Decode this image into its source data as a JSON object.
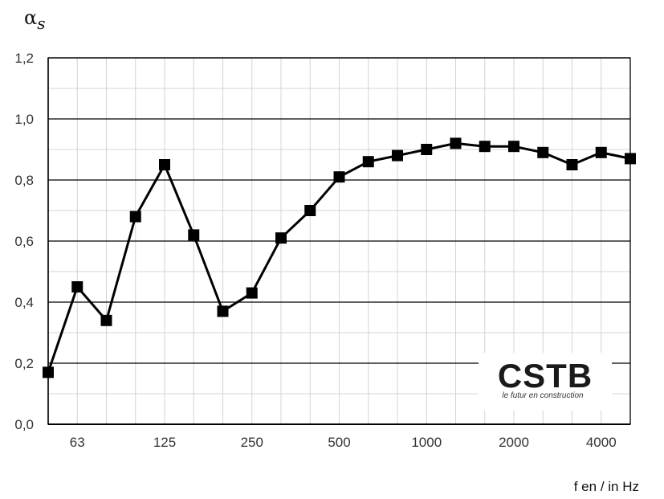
{
  "chart_data": {
    "type": "line",
    "ylabel_symbol": "α",
    "ylabel_subscript": "s",
    "xlabel": "f en / in Hz",
    "ylim": [
      0,
      1.2
    ],
    "y_ticks": [
      "0,0",
      "0,2",
      "0,4",
      "0,6",
      "0,8",
      "1,0",
      "1,2"
    ],
    "x_tick_labels": [
      {
        "band": 1,
        "label": "63"
      },
      {
        "band": 4,
        "label": "125"
      },
      {
        "band": 7,
        "label": "250"
      },
      {
        "band": 10,
        "label": "500"
      },
      {
        "band": 13,
        "label": "1000"
      },
      {
        "band": 16,
        "label": "2000"
      },
      {
        "band": 19,
        "label": "4000"
      }
    ],
    "x": [
      "50",
      "63",
      "80",
      "100",
      "125",
      "160",
      "200",
      "250",
      "315",
      "400",
      "500",
      "630",
      "800",
      "1000",
      "1250",
      "1600",
      "2000",
      "2500",
      "3150",
      "4000",
      "5000"
    ],
    "values": [
      0.17,
      0.45,
      0.34,
      0.68,
      0.85,
      0.62,
      0.37,
      0.43,
      0.61,
      0.7,
      0.81,
      0.86,
      0.88,
      0.9,
      0.92,
      0.91,
      0.91,
      0.89,
      0.85,
      0.89,
      0.87
    ],
    "grid": "horizontal-major-minor, vertical-per-band",
    "series_color": "#000000",
    "marker": "square"
  },
  "logo": {
    "text": "CSTB",
    "tagline": "le futur en construction"
  }
}
